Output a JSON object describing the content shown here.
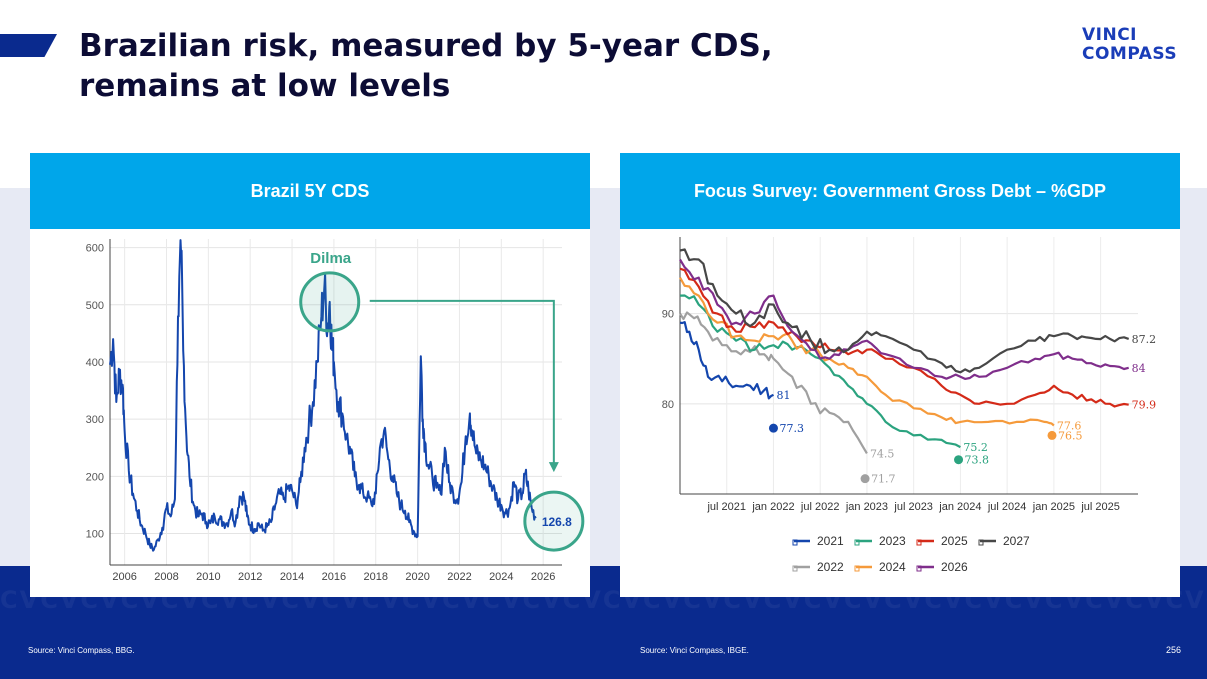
{
  "header": {
    "title_line1": "Brazilian risk, measured by 5-year CDS,",
    "title_line2": "remains at low levels",
    "logo_line1": "VINCI",
    "logo_line2": "COMPASS"
  },
  "footer": {
    "source_left": "Source: Vinci Compass, BBG.",
    "source_right": "Source: Vinci Compass, IBGE.",
    "page_number": "256",
    "pattern_text": "CVCVCVCVCVCVCVCVCVCVCVCVCVCVCVCVCVCVCVCVCVCVCVCVCVCVCVCVCVCVCVCVCVCVCVCVCVCVCVCVCVCVCVCV"
  },
  "colors": {
    "panel_header": "#00a6ea",
    "cds_line": "#1446ad",
    "annotation": "#3aa58a"
  },
  "chart_data": [
    {
      "type": "line",
      "title": "Brazil 5Y CDS",
      "xlabel": "",
      "ylabel": "",
      "xlim": [
        2005.3,
        2026.9
      ],
      "ylim": [
        45,
        615
      ],
      "xticks": [
        2006,
        2008,
        2010,
        2012,
        2014,
        2016,
        2018,
        2020,
        2022,
        2024,
        2026
      ],
      "yticks": [
        100,
        200,
        300,
        400,
        500,
        600
      ],
      "grid": true,
      "annotation_label": "Dilma",
      "highlight": {
        "x": 2015.8,
        "y": 505
      },
      "last_value_label": "126.8",
      "last_point": {
        "x": 2025.65,
        "y": 127
      },
      "series": [
        {
          "name": "Brazil 5Y CDS",
          "x": [
            2005.3,
            2005.45,
            2005.6,
            2005.75,
            2005.9,
            2006.0,
            2006.2,
            2006.4,
            2006.6,
            2006.8,
            2007.0,
            2007.2,
            2007.4,
            2007.6,
            2007.8,
            2008.0,
            2008.2,
            2008.4,
            2008.55,
            2008.7,
            2008.8,
            2008.95,
            2009.1,
            2009.3,
            2009.5,
            2009.7,
            2009.9,
            2010.1,
            2010.3,
            2010.5,
            2010.7,
            2010.9,
            2011.1,
            2011.3,
            2011.5,
            2011.7,
            2011.85,
            2012.0,
            2012.2,
            2012.4,
            2012.6,
            2012.8,
            2013.0,
            2013.2,
            2013.4,
            2013.6,
            2013.8,
            2014.0,
            2014.2,
            2014.4,
            2014.6,
            2014.8,
            2015.0,
            2015.2,
            2015.4,
            2015.55,
            2015.7,
            2015.8,
            2015.9,
            2016.0,
            2016.2,
            2016.4,
            2016.6,
            2016.8,
            2017.0,
            2017.2,
            2017.4,
            2017.6,
            2017.8,
            2018.0,
            2018.2,
            2018.4,
            2018.6,
            2018.8,
            2019.0,
            2019.2,
            2019.4,
            2019.6,
            2019.8,
            2020.0,
            2020.15,
            2020.25,
            2020.35,
            2020.5,
            2020.7,
            2020.9,
            2021.1,
            2021.3,
            2021.5,
            2021.7,
            2021.9,
            2022.1,
            2022.3,
            2022.5,
            2022.6,
            2022.8,
            2023.0,
            2023.2,
            2023.4,
            2023.6,
            2023.8,
            2024.0,
            2024.2,
            2024.4,
            2024.6,
            2024.8,
            2025.0,
            2025.15,
            2025.3,
            2025.45,
            2025.65
          ],
          "values": [
            395,
            440,
            330,
            380,
            360,
            280,
            210,
            170,
            140,
            115,
            100,
            80,
            72,
            90,
            110,
            145,
            130,
            160,
            480,
            590,
            420,
            270,
            200,
            150,
            130,
            135,
            120,
            118,
            130,
            125,
            120,
            118,
            140,
            120,
            165,
            165,
            130,
            115,
            108,
            118,
            105,
            112,
            120,
            150,
            170,
            160,
            180,
            175,
            150,
            190,
            250,
            290,
            330,
            400,
            480,
            535,
            460,
            505,
            430,
            400,
            330,
            310,
            270,
            240,
            200,
            185,
            170,
            165,
            150,
            170,
            250,
            280,
            230,
            200,
            170,
            150,
            140,
            120,
            105,
            95,
            410,
            300,
            260,
            220,
            200,
            180,
            170,
            250,
            190,
            170,
            160,
            190,
            270,
            310,
            280,
            240,
            230,
            220,
            200,
            180,
            160,
            150,
            135,
            145,
            190,
            160,
            170,
            205,
            175,
            145,
            127
          ]
        }
      ]
    },
    {
      "type": "line",
      "title": "Focus Survey: Government Gross Debt – %GDP",
      "xlabel": "",
      "ylabel": "",
      "xlim": [
        2021.0,
        2025.9
      ],
      "ylim": [
        70,
        98.5
      ],
      "xticks": [
        2021.5,
        2022.0,
        2022.5,
        2023.0,
        2023.5,
        2024.0,
        2024.5,
        2025.0,
        2025.5
      ],
      "xtick_labels": [
        "jul 2021",
        "jan 2022",
        "jul 2022",
        "jan 2023",
        "jul 2023",
        "jan 2024",
        "jul 2024",
        "jan 2025",
        "jul 2025"
      ],
      "yticks": [
        80,
        90
      ],
      "grid": true,
      "legend": [
        "2021",
        "2022",
        "2023",
        "2024",
        "2025",
        "2026",
        "2027"
      ],
      "legend_position": "bottom",
      "series": [
        {
          "name": "2021",
          "color": "#1446ad",
          "x": [
            2021.0,
            2021.1,
            2021.2,
            2021.3,
            2021.45,
            2021.6,
            2021.75,
            2021.9,
            2022.0
          ],
          "values": [
            89,
            88,
            86,
            83,
            82.5,
            82,
            82,
            81.5,
            81
          ],
          "end_label": "81",
          "dot": {
            "x": 2022.0,
            "y": 77.3,
            "label": "77.3"
          }
        },
        {
          "name": "2022",
          "color": "#a0a0a0",
          "x": [
            2021.0,
            2021.15,
            2021.3,
            2021.5,
            2021.7,
            2021.9,
            2022.0,
            2022.2,
            2022.4,
            2022.6,
            2022.8,
            2023.0
          ],
          "values": [
            90,
            89.5,
            88,
            86.5,
            86,
            85.5,
            85,
            83,
            80,
            79,
            78,
            74.5
          ],
          "end_label": "74.5",
          "dot": {
            "x": 2022.98,
            "y": 71.7,
            "label": "71.7"
          }
        },
        {
          "name": "2023",
          "color": "#2ba37f",
          "x": [
            2021.0,
            2021.2,
            2021.4,
            2021.6,
            2021.8,
            2022.0,
            2022.2,
            2022.4,
            2022.6,
            2022.8,
            2023.0,
            2023.2,
            2023.5,
            2023.8,
            2024.0
          ],
          "values": [
            92,
            91,
            88,
            87,
            86,
            86.5,
            86,
            85.5,
            84,
            82,
            80,
            78,
            76.5,
            76,
            75.2
          ],
          "end_label": "75.2",
          "dot": {
            "x": 2023.98,
            "y": 73.8,
            "label": "73.8"
          }
        },
        {
          "name": "2024",
          "color": "#f59a3b",
          "x": [
            2021.0,
            2021.2,
            2021.4,
            2021.6,
            2021.8,
            2022.0,
            2022.2,
            2022.4,
            2022.6,
            2022.8,
            2023.0,
            2023.2,
            2023.5,
            2023.8,
            2024.0,
            2024.3,
            2024.6,
            2024.9,
            2025.0
          ],
          "values": [
            94,
            92,
            89,
            87.5,
            87,
            87.5,
            87,
            86,
            85,
            84,
            83,
            81,
            79.5,
            78.5,
            78,
            78,
            78,
            78,
            77.6
          ],
          "end_label": "77.6",
          "dot": {
            "x": 2024.98,
            "y": 76.5,
            "label": "76.5"
          }
        },
        {
          "name": "2025",
          "color": "#d42a18",
          "x": [
            2021.0,
            2021.2,
            2021.4,
            2021.6,
            2021.8,
            2022.0,
            2022.2,
            2022.4,
            2022.6,
            2022.8,
            2023.0,
            2023.2,
            2023.5,
            2023.8,
            2024.0,
            2024.2,
            2024.5,
            2024.8,
            2025.0,
            2025.2,
            2025.4,
            2025.6,
            2025.8
          ],
          "values": [
            95,
            93,
            90,
            88,
            88.5,
            89,
            88,
            87,
            86,
            85.5,
            86,
            85,
            84,
            82,
            81,
            80,
            80,
            81,
            82,
            81,
            80.5,
            80,
            79.9
          ],
          "end_label": "79.9"
        },
        {
          "name": "2026",
          "color": "#7f2e8b",
          "x": [
            2021.0,
            2021.2,
            2021.4,
            2021.6,
            2021.8,
            2022.0,
            2022.2,
            2022.4,
            2022.6,
            2022.8,
            2023.0,
            2023.2,
            2023.5,
            2023.8,
            2024.0,
            2024.2,
            2024.5,
            2024.8,
            2025.0,
            2025.2,
            2025.4,
            2025.6,
            2025.8
          ],
          "values": [
            96,
            94,
            91,
            89,
            90,
            92,
            88,
            86,
            85,
            86,
            87,
            85.5,
            84,
            83,
            83,
            83,
            84,
            85,
            85.5,
            85,
            84.5,
            84.2,
            84
          ],
          "end_label": "84"
        },
        {
          "name": "2027",
          "color": "#474747",
          "x": [
            2021.0,
            2021.2,
            2021.4,
            2021.6,
            2021.8,
            2022.0,
            2022.2,
            2022.4,
            2022.6,
            2022.8,
            2023.0,
            2023.2,
            2023.5,
            2023.8,
            2024.0,
            2024.2,
            2024.5,
            2024.8,
            2025.0,
            2025.2,
            2025.4,
            2025.6,
            2025.8
          ],
          "values": [
            97,
            96,
            92,
            90,
            89,
            91,
            88.5,
            87,
            86,
            86,
            88,
            87.5,
            86,
            84.5,
            83.5,
            84,
            86,
            87,
            87.5,
            87.5,
            87.3,
            87.2,
            87.2
          ],
          "end_label": "87.2"
        }
      ]
    }
  ]
}
